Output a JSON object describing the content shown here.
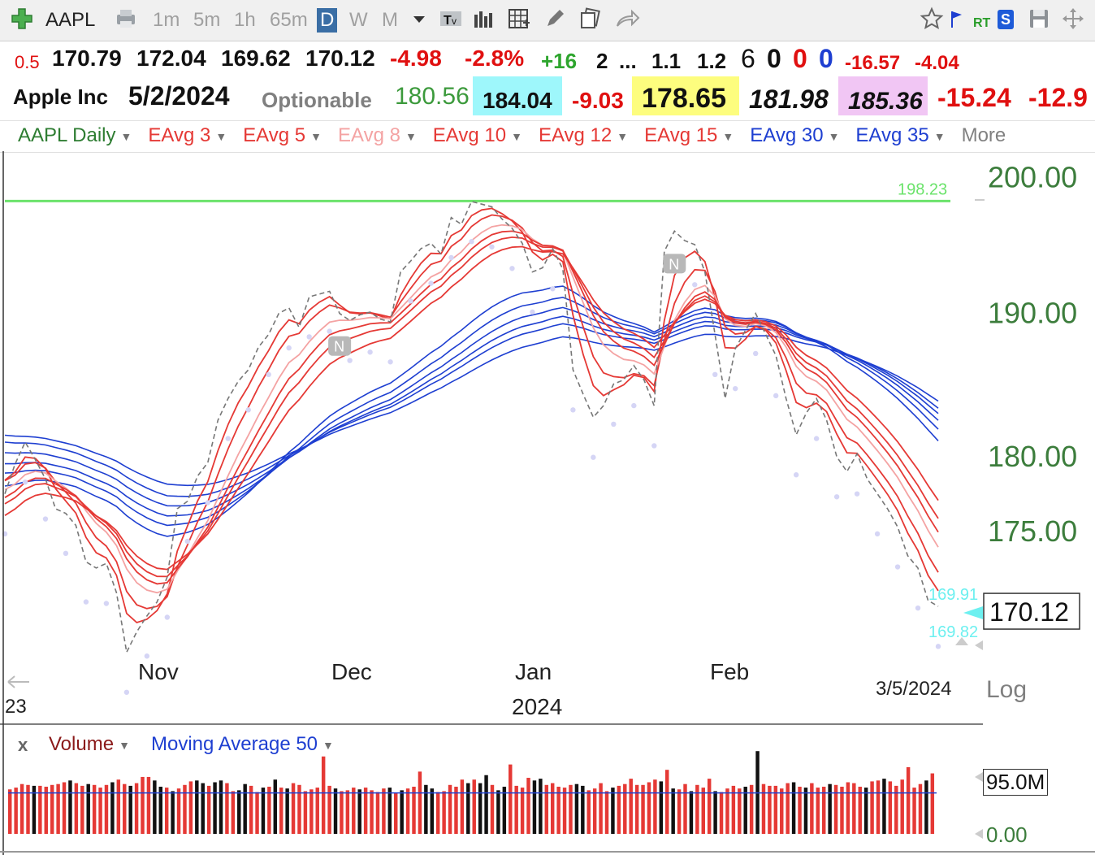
{
  "toolbar": {
    "symbol": "AAPL",
    "timeframes": [
      "1m",
      "5m",
      "1h",
      "65m",
      "D",
      "W",
      "M"
    ],
    "active_timeframe": "D",
    "rt_label": "RT",
    "sv_label": "S",
    "icons": [
      "add-symbol-icon",
      "printer-icon",
      "caret-down-icon",
      "text-tool-icon",
      "bars-icon",
      "grid-icon",
      "pencil-icon",
      "compare-icon",
      "share-icon",
      "star-icon",
      "flag-icon",
      "save-icon",
      "move-icon"
    ]
  },
  "quote_row1": {
    "change_size": "0.5",
    "open": "170.79",
    "high": "172.04",
    "low": "169.62",
    "close": "170.12",
    "change": "-4.98",
    "change_pct": "-2.8%",
    "v1": "+16",
    "v2": "2",
    "v3": "...",
    "v4": "1.1",
    "v5": "1.2",
    "v6": "6",
    "v7": "0",
    "v8": "0",
    "v9": "0",
    "v10": "-16.57",
    "v11": "-4.04"
  },
  "quote_row2": {
    "name": "Apple Inc",
    "date": "5/2/2024",
    "optionable": "Optionable",
    "v1": "180.56",
    "v2": "184.04",
    "v3": "-9.03",
    "v4": "178.65",
    "v5": "181.98",
    "v6": "185.36",
    "v7": "-15.24",
    "v8": "-12.9",
    "colors": {
      "cyan_bg": "#9ef7fb",
      "yellow_bg": "#fdfd7e",
      "pink_bg": "#f1c6f4",
      "green_text": "#3c9a3c",
      "red_text": "#e01010"
    }
  },
  "indicators": [
    {
      "label": "AAPL Daily",
      "color": "#2e7d32"
    },
    {
      "label": "EAvg 3",
      "color": "#e53935"
    },
    {
      "label": "EAvg 5",
      "color": "#e53935"
    },
    {
      "label": "EAvg 8",
      "color": "#f4a3a3"
    },
    {
      "label": "EAvg 10",
      "color": "#e53935"
    },
    {
      "label": "EAvg 12",
      "color": "#e53935"
    },
    {
      "label": "EAvg 15",
      "color": "#e53935"
    },
    {
      "label": "EAvg 30",
      "color": "#1e3fd1"
    },
    {
      "label": "EAvg 35",
      "color": "#1e3fd1"
    },
    {
      "label": "More",
      "color": "#808080"
    }
  ],
  "chart_data": {
    "type": "line",
    "title": "",
    "xlabel": "",
    "ylabel": "",
    "y_scale": "log",
    "scale_label": "Log",
    "ylim": [
      166,
      202
    ],
    "y_ticks": [
      "200.00",
      "190.00",
      "180.00",
      "175.00"
    ],
    "x_tick_labels": [
      "Nov",
      "Dec",
      "Jan",
      "Feb"
    ],
    "year_label": "2024",
    "left_cut_label": "23",
    "end_date_label": "3/5/2024",
    "grid": false,
    "legend": "top",
    "reference_line": {
      "value": 198.23,
      "label": "198.23",
      "color": "#6be36b"
    },
    "last_price": {
      "value": 170.12,
      "label": "170.12"
    },
    "bid_label": "169.91",
    "ask_label": "169.82",
    "event_badges": [
      {
        "label": "N",
        "date_index": 56
      },
      {
        "label": "N",
        "date_index": 110
      }
    ],
    "close_series": [
      177.5,
      179.5,
      181.0,
      179.8,
      178.5,
      176.5,
      176.2,
      175.4,
      173.0,
      172.6,
      172.9,
      171.0,
      167.2,
      168.5,
      169.5,
      170.4,
      172.0,
      176.5,
      177.0,
      178.7,
      179.6,
      182.5,
      184.0,
      185.2,
      186.0,
      187.6,
      188.5,
      190.0,
      190.4,
      189.0,
      191.2,
      191.4,
      191.6,
      190.0,
      189.5,
      189.9,
      190.1,
      189.6,
      189.4,
      193.0,
      193.8,
      194.7,
      195.1,
      194.3,
      197.0,
      196.5,
      198.2,
      198.0,
      197.8,
      196.9,
      196.2,
      195.1,
      193.0,
      193.3,
      194.7,
      193.2,
      186.0,
      184.3,
      182.7,
      183.5,
      185.0,
      185.3,
      186.3,
      185.3,
      183.5,
      194.5,
      196.0,
      195.3,
      195.0,
      193.0,
      188.5,
      184.0,
      187.5,
      188.8,
      190.0,
      188.5,
      187.0,
      184.0,
      181.5,
      183.0,
      184.0,
      182.5,
      180.0,
      179.0,
      180.2,
      178.5,
      177.5,
      176.5,
      175.3,
      173.4,
      172.6,
      170.5,
      170.12
    ],
    "ema_fast_periods": [
      3,
      5,
      8,
      10,
      12,
      15
    ],
    "ema_slow_periods": [
      30,
      35,
      40,
      45,
      50,
      60
    ],
    "volume": {
      "label": "Volume",
      "ma_label": "Moving Average 50",
      "max_label": "95.0M",
      "min_label": "0.00",
      "close_label": "x",
      "unit": "M",
      "ylim": [
        0,
        95
      ],
      "values": [
        50,
        52,
        56,
        55,
        54,
        54,
        53,
        55,
        56,
        58,
        60,
        57,
        54,
        56,
        55,
        52,
        55,
        58,
        61,
        56,
        54,
        57,
        64,
        64,
        60,
        53,
        52,
        48,
        51,
        55,
        59,
        60,
        57,
        54,
        58,
        60,
        57,
        48,
        49,
        56,
        54,
        47,
        52,
        53,
        61,
        52,
        51,
        57,
        55,
        48,
        50,
        52,
        87,
        54,
        51,
        48,
        49,
        52,
        50,
        52,
        49,
        47,
        51,
        52,
        46,
        49,
        51,
        53,
        70,
        55,
        51,
        47,
        48,
        55,
        53,
        61,
        57,
        61,
        57,
        66,
        55,
        49,
        53,
        78,
        54,
        52,
        63,
        60,
        62,
        55,
        57,
        53,
        52,
        55,
        56,
        54,
        49,
        51,
        57,
        48,
        52,
        54,
        56,
        62,
        55,
        55,
        58,
        61,
        59,
        72,
        51,
        50,
        56,
        48,
        55,
        52,
        62,
        48,
        47,
        51,
        54,
        51,
        53,
        55,
        93,
        56,
        54,
        54,
        51,
        57,
        58,
        53,
        52,
        57,
        52,
        53,
        56,
        55,
        53,
        58,
        57,
        53,
        52,
        59,
        60,
        62,
        59,
        54,
        61,
        75,
        52,
        56,
        60,
        68
      ],
      "colors": [
        "r",
        "r",
        "r",
        "r",
        "b",
        "r",
        "r",
        "r",
        "r",
        "r",
        "b",
        "r",
        "r",
        "b",
        "r",
        "r",
        "r",
        "b",
        "r",
        "r",
        "b",
        "r",
        "r",
        "r",
        "b",
        "b",
        "r",
        "b",
        "r",
        "r",
        "r",
        "b",
        "b",
        "r",
        "b",
        "b",
        "r",
        "r",
        "b",
        "b",
        "r",
        "r",
        "b",
        "r",
        "b",
        "r",
        "b",
        "r",
        "r",
        "r",
        "r",
        "r",
        "r",
        "r",
        "b",
        "r",
        "r",
        "r",
        "b",
        "r",
        "r",
        "r",
        "r",
        "b",
        "r",
        "b",
        "r",
        "r",
        "r",
        "b",
        "b",
        "r",
        "r",
        "r",
        "r",
        "r",
        "b",
        "r",
        "b",
        "b",
        "r",
        "b",
        "b",
        "r",
        "r",
        "r",
        "r",
        "b",
        "b",
        "r",
        "r",
        "r",
        "r",
        "r",
        "b",
        "b",
        "r",
        "r",
        "r",
        "r",
        "b",
        "r",
        "r",
        "r",
        "r",
        "r",
        "r",
        "r",
        "b",
        "r",
        "b",
        "r",
        "r",
        "b",
        "r",
        "r",
        "r",
        "b",
        "r",
        "r",
        "r",
        "r",
        "b",
        "r",
        "b",
        "r",
        "r",
        "r",
        "r",
        "r",
        "b",
        "r",
        "b",
        "r",
        "r",
        "r",
        "b",
        "r",
        "r",
        "r",
        "r",
        "r",
        "b",
        "r",
        "r",
        "b",
        "r",
        "r",
        "r",
        "r",
        "r",
        "r",
        "b",
        "r"
      ],
      "ma_values": [
        46,
        46,
        46,
        46,
        46,
        46,
        46,
        46,
        46,
        46,
        46,
        46,
        46,
        46,
        46,
        46,
        46,
        46,
        46,
        46,
        46,
        46,
        46,
        46,
        46,
        46,
        46,
        46,
        46,
        46,
        46,
        46,
        46,
        46,
        46,
        46,
        46,
        46,
        46,
        46,
        46,
        46,
        46,
        46,
        46,
        46,
        46,
        46,
        46,
        46,
        46,
        46,
        46,
        46,
        46,
        46,
        46,
        46,
        46,
        46,
        46,
        46,
        46,
        46,
        46,
        46,
        46,
        46,
        46,
        46,
        46,
        46,
        46,
        46,
        46,
        46,
        46,
        46,
        46,
        46,
        46,
        46,
        46,
        46,
        46,
        46,
        46,
        46,
        46,
        46,
        46,
        46,
        46,
        46,
        46,
        46,
        46,
        46,
        46,
        46,
        46,
        46,
        46,
        46,
        46,
        46,
        46,
        46,
        46,
        46,
        46,
        46,
        46,
        46,
        46,
        46,
        46,
        46,
        46,
        46,
        46,
        46,
        46,
        46,
        46,
        46,
        46,
        46,
        46,
        46,
        46,
        46,
        46,
        46,
        46,
        46,
        46,
        46,
        46,
        46,
        46,
        46,
        46,
        46,
        46,
        46,
        46,
        46,
        46,
        46,
        46,
        46,
        46,
        46,
        46
      ]
    }
  }
}
